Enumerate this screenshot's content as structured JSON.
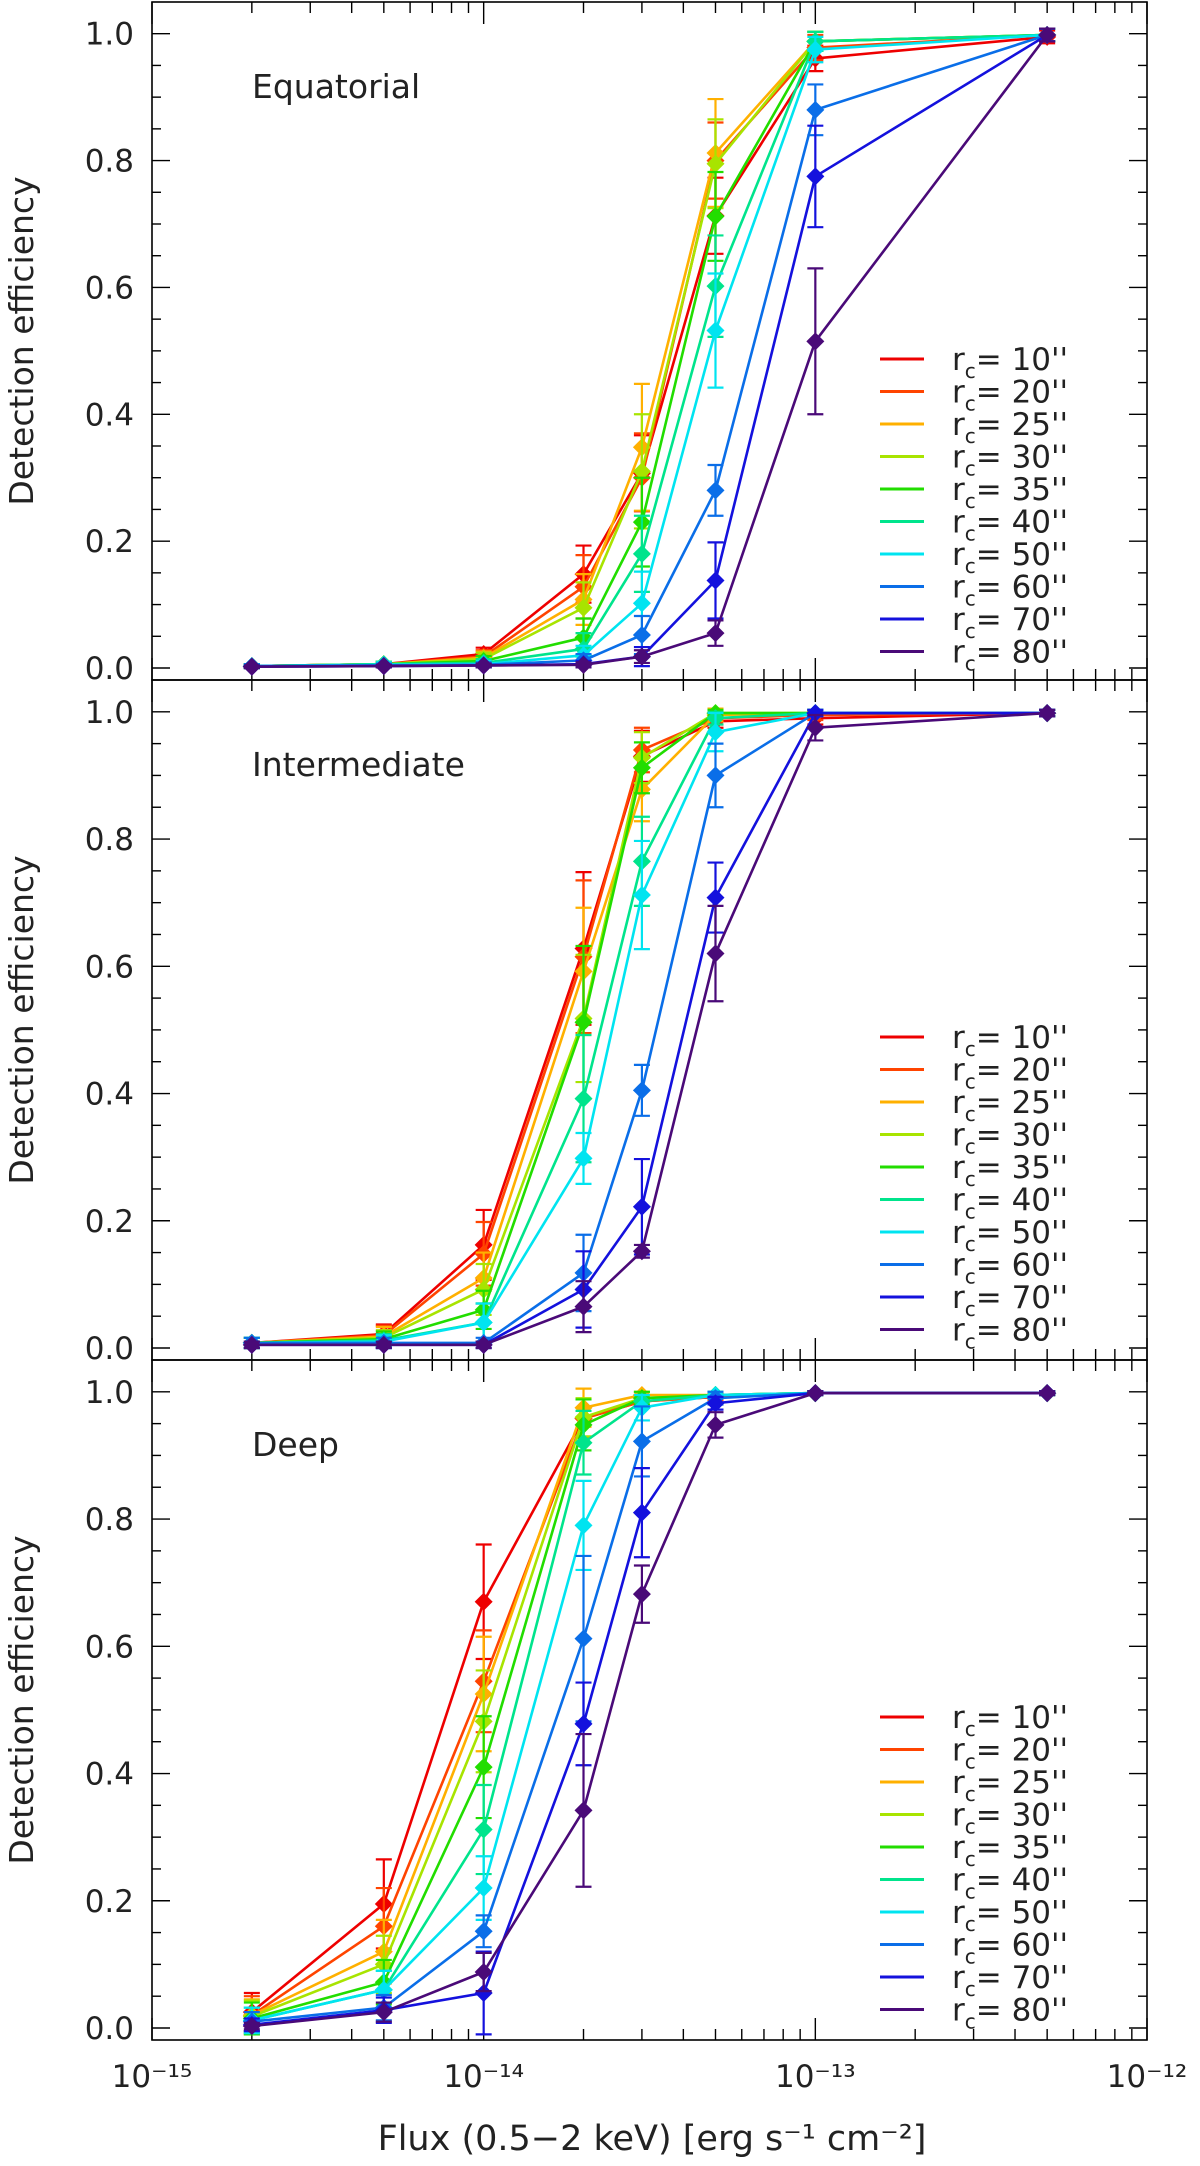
{
  "figure": {
    "xlabel": "Flux (0.5−2 keV) [erg s⁻¹ cm⁻²]",
    "xaxis_scale": "log",
    "xlim": [
      1e-15,
      1e-12
    ]
  },
  "chart_data": [
    {
      "type": "line",
      "title": "Equatorial",
      "ylabel": "Detection efficiency",
      "ylim": [
        0,
        1.05
      ],
      "yticks": [
        "0.0",
        "0.2",
        "0.4",
        "0.6",
        "0.8",
        "1.0"
      ],
      "xticks": [
        "10⁻¹⁵",
        "10⁻¹⁴",
        "10⁻¹³",
        "10⁻¹²"
      ],
      "x": [
        2e-15,
        5e-15,
        1e-14,
        2e-14,
        3e-14,
        5e-14,
        1e-13,
        5e-13
      ],
      "legend_position": "right",
      "series": [
        {
          "name": "r_c = 10''",
          "color": "#ee0000",
          "values": [
            0.003,
            0.006,
            0.022,
            0.148,
            0.307,
            0.713,
            0.961,
            0.995
          ],
          "errors": [
            0.003,
            0.004,
            0.01,
            0.045,
            0.06,
            0.06,
            0.02,
            0.01
          ]
        },
        {
          "name": "r_c = 20''",
          "color": "#ff4400",
          "values": [
            0.003,
            0.006,
            0.018,
            0.128,
            0.3,
            0.8,
            0.978,
            0.998
          ],
          "errors": [
            0.003,
            0.004,
            0.01,
            0.05,
            0.07,
            0.06,
            0.02,
            0.01
          ]
        },
        {
          "name": "r_c = 25''",
          "color": "#ffb000",
          "values": [
            0.003,
            0.006,
            0.016,
            0.108,
            0.348,
            0.812,
            0.988,
            0.998
          ],
          "errors": [
            0.003,
            0.004,
            0.01,
            0.04,
            0.1,
            0.085,
            0.015,
            0.01
          ]
        },
        {
          "name": "r_c = 30''",
          "color": "#a8e400",
          "values": [
            0.003,
            0.006,
            0.014,
            0.095,
            0.31,
            0.795,
            0.988,
            0.998
          ],
          "errors": [
            0.003,
            0.004,
            0.01,
            0.04,
            0.09,
            0.07,
            0.015,
            0.01
          ]
        },
        {
          "name": "r_c = 35''",
          "color": "#22dd00",
          "values": [
            0.003,
            0.006,
            0.011,
            0.048,
            0.23,
            0.712,
            0.988,
            0.998
          ],
          "errors": [
            0.003,
            0.004,
            0.008,
            0.03,
            0.07,
            0.07,
            0.015,
            0.01
          ]
        },
        {
          "name": "r_c = 40''",
          "color": "#00e48c",
          "values": [
            0.003,
            0.006,
            0.008,
            0.03,
            0.18,
            0.602,
            0.988,
            0.998
          ],
          "errors": [
            0.003,
            0.004,
            0.006,
            0.025,
            0.06,
            0.08,
            0.015,
            0.01
          ]
        },
        {
          "name": "r_c = 50''",
          "color": "#00e4f0",
          "values": [
            0.003,
            0.005,
            0.006,
            0.02,
            0.102,
            0.532,
            0.975,
            0.998
          ],
          "errors": [
            0.003,
            0.004,
            0.005,
            0.015,
            0.05,
            0.09,
            0.02,
            0.01
          ]
        },
        {
          "name": "r_c = 60''",
          "color": "#0a6ee8",
          "values": [
            0.003,
            0.004,
            0.005,
            0.012,
            0.052,
            0.28,
            0.88,
            0.998
          ],
          "errors": [
            0.003,
            0.003,
            0.004,
            0.01,
            0.03,
            0.04,
            0.04,
            0.01
          ]
        },
        {
          "name": "r_c = 70''",
          "color": "#1411dd",
          "values": [
            0.002,
            0.003,
            0.004,
            0.006,
            0.018,
            0.138,
            0.775,
            0.998
          ],
          "errors": [
            0.002,
            0.002,
            0.003,
            0.005,
            0.015,
            0.06,
            0.08,
            0.01
          ]
        },
        {
          "name": "r_c = 80''",
          "color": "#4a0a78",
          "values": [
            0.002,
            0.003,
            0.004,
            0.005,
            0.018,
            0.055,
            0.515,
            0.998
          ],
          "errors": [
            0.002,
            0.002,
            0.003,
            0.004,
            0.01,
            0.02,
            0.115,
            0.01
          ]
        }
      ]
    },
    {
      "type": "line",
      "title": "Intermediate",
      "ylabel": "Detection efficiency",
      "ylim": [
        0,
        1.05
      ],
      "yticks": [
        "0.0",
        "0.2",
        "0.4",
        "0.6",
        "0.8",
        "1.0"
      ],
      "xticks": [
        "10⁻¹⁵",
        "10⁻¹⁴",
        "10⁻¹³",
        "10⁻¹²"
      ],
      "x": [
        2e-15,
        5e-15,
        1e-14,
        2e-14,
        3e-14,
        5e-14,
        1e-13,
        5e-13
      ],
      "legend_position": "right",
      "series": [
        {
          "name": "r_c = 10''",
          "color": "#ee0000",
          "values": [
            0.008,
            0.022,
            0.162,
            0.628,
            0.93,
            0.985,
            0.99,
            0.998
          ],
          "errors": [
            0.008,
            0.015,
            0.055,
            0.12,
            0.04,
            0.01,
            0.01,
            0.005
          ]
        },
        {
          "name": "r_c = 20''",
          "color": "#ff4400",
          "values": [
            0.008,
            0.02,
            0.148,
            0.615,
            0.94,
            0.99,
            0.995,
            0.998
          ],
          "errors": [
            0.008,
            0.015,
            0.05,
            0.12,
            0.035,
            0.01,
            0.008,
            0.005
          ]
        },
        {
          "name": "r_c = 25''",
          "color": "#ffb000",
          "values": [
            0.008,
            0.018,
            0.11,
            0.592,
            0.878,
            0.995,
            0.998,
            0.998
          ],
          "errors": [
            0.008,
            0.015,
            0.04,
            0.1,
            0.05,
            0.01,
            0.005,
            0.005
          ]
        },
        {
          "name": "r_c = 30''",
          "color": "#a8e400",
          "values": [
            0.008,
            0.016,
            0.092,
            0.518,
            0.928,
            0.998,
            0.998,
            0.998
          ],
          "errors": [
            0.008,
            0.012,
            0.04,
            0.1,
            0.04,
            0.005,
            0.005,
            0.005
          ]
        },
        {
          "name": "r_c = 35''",
          "color": "#22dd00",
          "values": [
            0.008,
            0.014,
            0.06,
            0.512,
            0.912,
            0.998,
            0.998,
            0.998
          ],
          "errors": [
            0.008,
            0.012,
            0.03,
            0.12,
            0.04,
            0.005,
            0.005,
            0.005
          ]
        },
        {
          "name": "r_c = 40''",
          "color": "#00e48c",
          "values": [
            0.008,
            0.012,
            0.04,
            0.392,
            0.765,
            0.99,
            0.998,
            0.998
          ],
          "errors": [
            0.008,
            0.01,
            0.03,
            0.1,
            0.07,
            0.01,
            0.005,
            0.005
          ]
        },
        {
          "name": "r_c = 50''",
          "color": "#00e4f0",
          "values": [
            0.008,
            0.01,
            0.04,
            0.298,
            0.712,
            0.968,
            0.998,
            0.998
          ],
          "errors": [
            0.008,
            0.01,
            0.03,
            0.04,
            0.085,
            0.03,
            0.005,
            0.005
          ]
        },
        {
          "name": "r_c = 60''",
          "color": "#0a6ee8",
          "values": [
            0.008,
            0.008,
            0.008,
            0.118,
            0.405,
            0.9,
            0.998,
            0.998
          ],
          "errors": [
            0.008,
            0.008,
            0.008,
            0.06,
            0.04,
            0.05,
            0.005,
            0.005
          ]
        },
        {
          "name": "r_c = 70''",
          "color": "#1411dd",
          "values": [
            0.005,
            0.005,
            0.005,
            0.092,
            0.222,
            0.708,
            0.998,
            0.998
          ],
          "errors": [
            0.005,
            0.005,
            0.005,
            0.06,
            0.075,
            0.055,
            0.005,
            0.005
          ]
        },
        {
          "name": "r_c = 80''",
          "color": "#4a0a78",
          "values": [
            0.005,
            0.005,
            0.005,
            0.065,
            0.152,
            0.62,
            0.975,
            0.998
          ],
          "errors": [
            0.005,
            0.005,
            0.005,
            0.04,
            0.01,
            0.075,
            0.02,
            0.005
          ]
        }
      ]
    },
    {
      "type": "line",
      "title": "Deep",
      "ylabel": "Detection efficiency",
      "ylim": [
        0,
        1.05
      ],
      "yticks": [
        "0.0",
        "0.2",
        "0.4",
        "0.6",
        "0.8",
        "1.0"
      ],
      "xticks": [
        "10⁻¹⁵",
        "10⁻¹⁴",
        "10⁻¹³",
        "10⁻¹²"
      ],
      "x": [
        2e-15,
        5e-15,
        1e-14,
        2e-14,
        3e-14,
        5e-14,
        1e-13,
        5e-13
      ],
      "legend_position": "right",
      "series": [
        {
          "name": "r_c = 10''",
          "color": "#ee0000",
          "values": [
            0.025,
            0.195,
            0.67,
            0.958,
            0.985,
            0.992,
            0.998,
            0.998
          ],
          "errors": [
            0.03,
            0.07,
            0.09,
            0.03,
            0.01,
            0.005,
            0.003,
            0.003
          ]
        },
        {
          "name": "r_c = 20''",
          "color": "#ff4400",
          "values": [
            0.02,
            0.16,
            0.545,
            0.958,
            0.985,
            0.992,
            0.998,
            0.998
          ],
          "errors": [
            0.03,
            0.06,
            0.08,
            0.03,
            0.01,
            0.005,
            0.003,
            0.003
          ]
        },
        {
          "name": "r_c = 25''",
          "color": "#ffb000",
          "values": [
            0.02,
            0.12,
            0.525,
            0.975,
            0.995,
            0.995,
            0.998,
            0.998
          ],
          "errors": [
            0.025,
            0.05,
            0.09,
            0.03,
            0.005,
            0.005,
            0.003,
            0.003
          ]
        },
        {
          "name": "r_c = 30''",
          "color": "#a8e400",
          "values": [
            0.018,
            0.1,
            0.482,
            0.96,
            0.99,
            0.995,
            0.998,
            0.998
          ],
          "errors": [
            0.025,
            0.045,
            0.08,
            0.03,
            0.01,
            0.005,
            0.003,
            0.003
          ]
        },
        {
          "name": "r_c = 35''",
          "color": "#22dd00",
          "values": [
            0.015,
            0.072,
            0.41,
            0.948,
            0.99,
            0.995,
            0.998,
            0.998
          ],
          "errors": [
            0.025,
            0.035,
            0.08,
            0.04,
            0.01,
            0.005,
            0.003,
            0.003
          ]
        },
        {
          "name": "r_c = 40''",
          "color": "#00e48c",
          "values": [
            0.012,
            0.06,
            0.312,
            0.92,
            0.985,
            0.995,
            0.998,
            0.998
          ],
          "errors": [
            0.02,
            0.03,
            0.07,
            0.05,
            0.01,
            0.005,
            0.003,
            0.003
          ]
        },
        {
          "name": "r_c = 50''",
          "color": "#00e4f0",
          "values": [
            0.012,
            0.06,
            0.22,
            0.79,
            0.975,
            0.995,
            0.998,
            0.998
          ],
          "errors": [
            0.02,
            0.03,
            0.05,
            0.07,
            0.02,
            0.005,
            0.003,
            0.003
          ]
        },
        {
          "name": "r_c = 60''",
          "color": "#0a6ee8",
          "values": [
            0.01,
            0.032,
            0.152,
            0.612,
            0.922,
            0.99,
            0.998,
            0.998
          ],
          "errors": [
            0.015,
            0.02,
            0.025,
            0.13,
            0.055,
            0.01,
            0.003,
            0.003
          ]
        },
        {
          "name": "r_c = 70''",
          "color": "#1411dd",
          "values": [
            0.005,
            0.028,
            0.055,
            0.478,
            0.81,
            0.982,
            0.998,
            0.998
          ],
          "errors": [
            0.01,
            0.02,
            0.065,
            0.065,
            0.07,
            0.01,
            0.003,
            0.003
          ]
        },
        {
          "name": "r_c = 80''",
          "color": "#4a0a78",
          "values": [
            0.003,
            0.025,
            0.088,
            0.342,
            0.682,
            0.948,
            0.998,
            0.998
          ],
          "errors": [
            0.005,
            0.015,
            0.03,
            0.12,
            0.045,
            0.02,
            0.003,
            0.003
          ]
        }
      ]
    }
  ]
}
